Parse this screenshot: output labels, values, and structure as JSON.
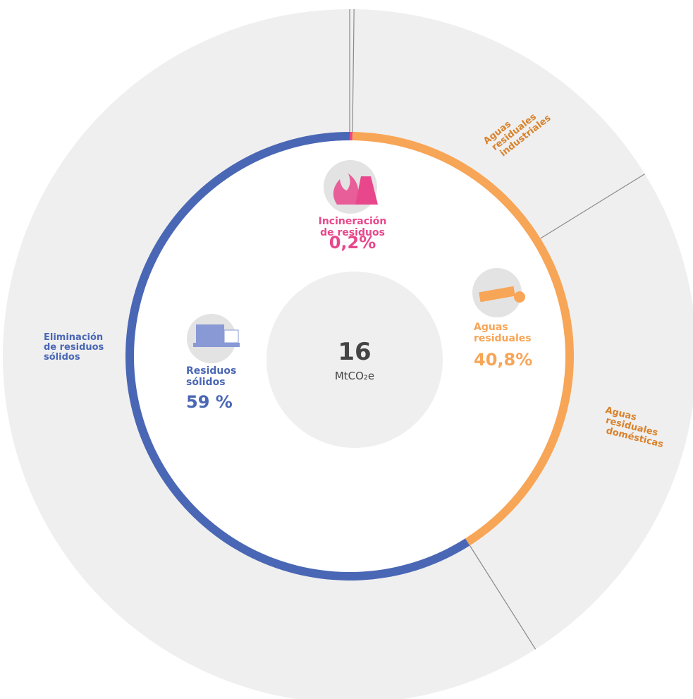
{
  "chart_data": {
    "type": "sunburst",
    "categories": [
      [
        "Incineración",
        "de residuos"
      ],
      [
        "Aguas",
        "residuales"
      ],
      [
        "Residuos",
        "sólidos"
      ]
    ],
    "values": [
      0.2,
      40.8,
      59
    ],
    "value_labels": [
      "0,2%",
      "40,8%",
      "59 %"
    ],
    "colors": [
      "#e8478b",
      "#f7a556",
      "#4a67b5"
    ],
    "outer": {
      "labels": [
        null,
        [
          "Aguas",
          "residuales",
          "industriales"
        ],
        [
          "Aguas",
          "residuales",
          "domésticas"
        ],
        [
          "Eliminación",
          "de residuos",
          "sólidos"
        ]
      ],
      "values": [
        0.2,
        16,
        24.8,
        59
      ],
      "label_colors": [
        "#e8478b",
        "#d9822b",
        "#d9822b",
        "#4a67b5"
      ]
    },
    "center_value": "16",
    "center_unit": "MtCO₂e"
  }
}
